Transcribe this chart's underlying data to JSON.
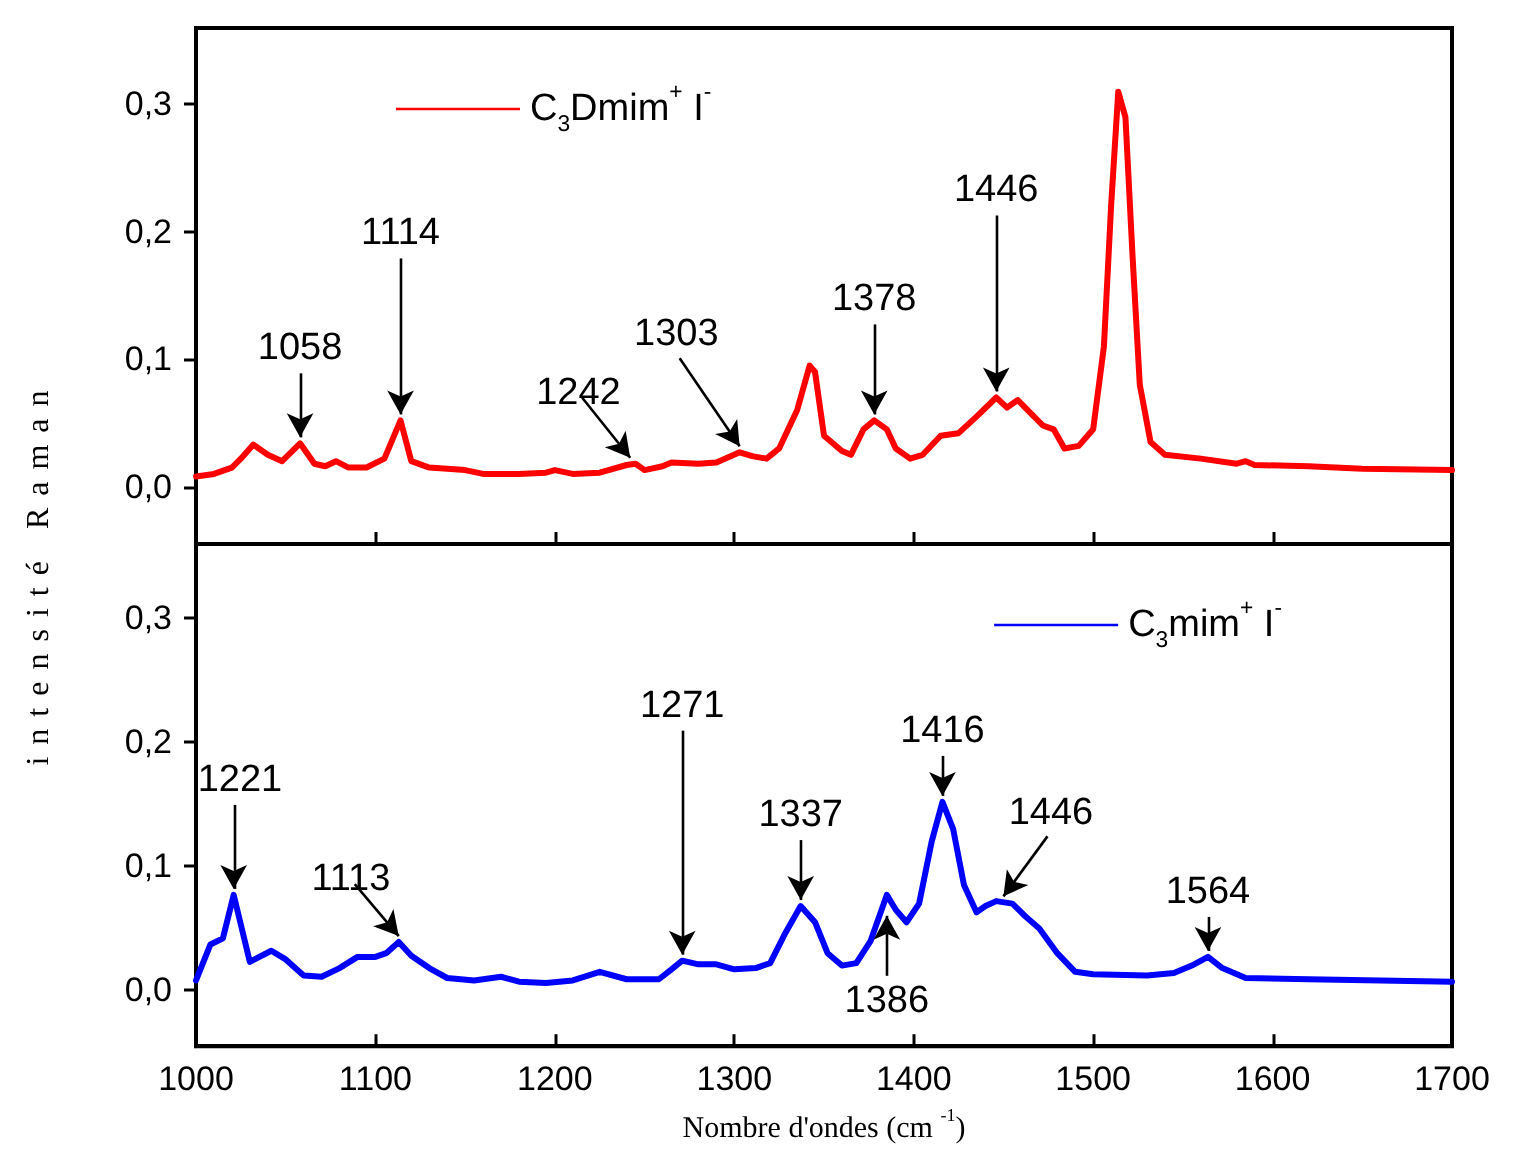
{
  "chart_data": [
    {
      "type": "line",
      "ylabel": "intensité Raman",
      "xlim": [
        1000,
        1700
      ],
      "xticks": [
        1000,
        1100,
        1200,
        1300,
        1400,
        1500,
        1600,
        1700
      ],
      "ylim": [
        -0.045,
        0.36
      ],
      "yticks": [
        {
          "value": 0,
          "label": "0,0"
        },
        {
          "value": 0.1,
          "label": "0,1"
        },
        {
          "value": 0.2,
          "label": "0,2"
        },
        {
          "value": 0.3,
          "label": "0,3"
        }
      ],
      "tick_labels": "y",
      "legend": "top left",
      "grid": false,
      "marker": "none",
      "line_style": "solid",
      "series": [
        {
          "name": "C$_{3}$Dmim$^{+}$ I$^{-}$",
          "color": "#ff0000",
          "x": [
            1000,
            1010,
            1020,
            1025,
            1032,
            1040,
            1048,
            1058,
            1066,
            1072,
            1078,
            1085,
            1095,
            1105,
            1114,
            1120,
            1130,
            1150,
            1160,
            1180,
            1195,
            1200,
            1210,
            1225,
            1240,
            1245,
            1250,
            1260,
            1265,
            1280,
            1290,
            1303,
            1310,
            1318,
            1325,
            1335,
            1342,
            1345,
            1350,
            1360,
            1365,
            1372,
            1378,
            1385,
            1390,
            1398,
            1405,
            1415,
            1425,
            1435,
            1446,
            1452,
            1458,
            1465,
            1472,
            1478,
            1484,
            1492,
            1500,
            1506,
            1510,
            1514,
            1518,
            1522,
            1526,
            1532,
            1540,
            1560,
            1580,
            1585,
            1590,
            1620,
            1650,
            1700
          ],
          "values": [
            0.008,
            0.01,
            0.015,
            0.022,
            0.033,
            0.025,
            0.02,
            0.034,
            0.018,
            0.016,
            0.02,
            0.015,
            0.015,
            0.022,
            0.052,
            0.02,
            0.015,
            0.013,
            0.01,
            0.01,
            0.011,
            0.013,
            0.01,
            0.011,
            0.017,
            0.018,
            0.013,
            0.016,
            0.019,
            0.018,
            0.019,
            0.027,
            0.024,
            0.022,
            0.03,
            0.06,
            0.095,
            0.09,
            0.04,
            0.028,
            0.025,
            0.045,
            0.052,
            0.045,
            0.03,
            0.022,
            0.025,
            0.04,
            0.042,
            0.055,
            0.07,
            0.062,
            0.068,
            0.058,
            0.048,
            0.045,
            0.03,
            0.032,
            0.045,
            0.11,
            0.22,
            0.31,
            0.29,
            0.18,
            0.08,
            0.035,
            0.025,
            0.022,
            0.018,
            0.02,
            0.017,
            0.016,
            0.014,
            0.013
          ]
        }
      ],
      "annotations": [
        {
          "text": "1058",
          "x": 1058,
          "y": 0.034
        },
        {
          "text": "1114",
          "x": 1114,
          "y": 0.052
        },
        {
          "text": "1242",
          "x": 1242,
          "y": 0.018
        },
        {
          "text": "1303",
          "x": 1303,
          "y": 0.027
        },
        {
          "text": "1378",
          "x": 1378,
          "y": 0.052
        },
        {
          "text": "1446",
          "x": 1446,
          "y": 0.07
        }
      ]
    },
    {
      "type": "line",
      "xlabel": "Nombre d'ondes (cm $^{-1}$)",
      "xlim": [
        1000,
        1700
      ],
      "xticks": [
        1000,
        1100,
        1200,
        1300,
        1400,
        1500,
        1600,
        1700
      ],
      "ylim": [
        -0.045,
        0.36
      ],
      "yticks": [
        {
          "value": 0,
          "label": "0,0"
        },
        {
          "value": 0.1,
          "label": "0,1"
        },
        {
          "value": 0.2,
          "label": "0,2"
        },
        {
          "value": 0.3,
          "label": "0,3"
        }
      ],
      "legend": "top right",
      "grid": false,
      "marker": "none",
      "line_style": "solid",
      "series": [
        {
          "name": "C$_{3}$mim$^{+}$ I$^{-}$",
          "color": "#0000ff",
          "x": [
            1000,
            1008,
            1015,
            1021,
            1030,
            1042,
            1050,
            1060,
            1070,
            1080,
            1090,
            1100,
            1106,
            1113,
            1120,
            1130,
            1140,
            1155,
            1170,
            1180,
            1195,
            1210,
            1225,
            1240,
            1258,
            1265,
            1271,
            1280,
            1290,
            1300,
            1312,
            1320,
            1328,
            1337,
            1345,
            1352,
            1360,
            1368,
            1376,
            1385,
            1390,
            1396,
            1403,
            1410,
            1416,
            1422,
            1428,
            1435,
            1440,
            1446,
            1455,
            1462,
            1470,
            1480,
            1490,
            1500,
            1530,
            1545,
            1555,
            1564,
            1572,
            1585,
            1620,
            1660,
            1700
          ],
          "values": [
            0.008,
            0.037,
            0.042,
            0.077,
            0.023,
            0.032,
            0.025,
            0.012,
            0.011,
            0.018,
            0.027,
            0.027,
            0.03,
            0.039,
            0.028,
            0.018,
            0.01,
            0.008,
            0.011,
            0.007,
            0.006,
            0.008,
            0.015,
            0.009,
            0.009,
            0.017,
            0.024,
            0.021,
            0.021,
            0.017,
            0.018,
            0.022,
            0.045,
            0.068,
            0.055,
            0.03,
            0.02,
            0.022,
            0.04,
            0.077,
            0.065,
            0.055,
            0.07,
            0.12,
            0.152,
            0.13,
            0.085,
            0.063,
            0.068,
            0.072,
            0.07,
            0.06,
            0.05,
            0.03,
            0.015,
            0.013,
            0.012,
            0.014,
            0.02,
            0.027,
            0.018,
            0.01,
            0.009,
            0.008,
            0.007
          ]
        }
      ],
      "annotations": [
        {
          "text": "1221",
          "x": 1021,
          "y": 0.077
        },
        {
          "text": "1113",
          "x": 1113,
          "y": 0.039
        },
        {
          "text": "1271",
          "x": 1271,
          "y": 0.024
        },
        {
          "text": "1337",
          "x": 1337,
          "y": 0.068
        },
        {
          "text": "1386",
          "x": 1385,
          "y": 0.065
        },
        {
          "text": "1416",
          "x": 1416,
          "y": 0.152
        },
        {
          "text": "1446",
          "x": 1450,
          "y": 0.071
        },
        {
          "text": "1564",
          "x": 1564,
          "y": 0.027
        }
      ]
    }
  ]
}
